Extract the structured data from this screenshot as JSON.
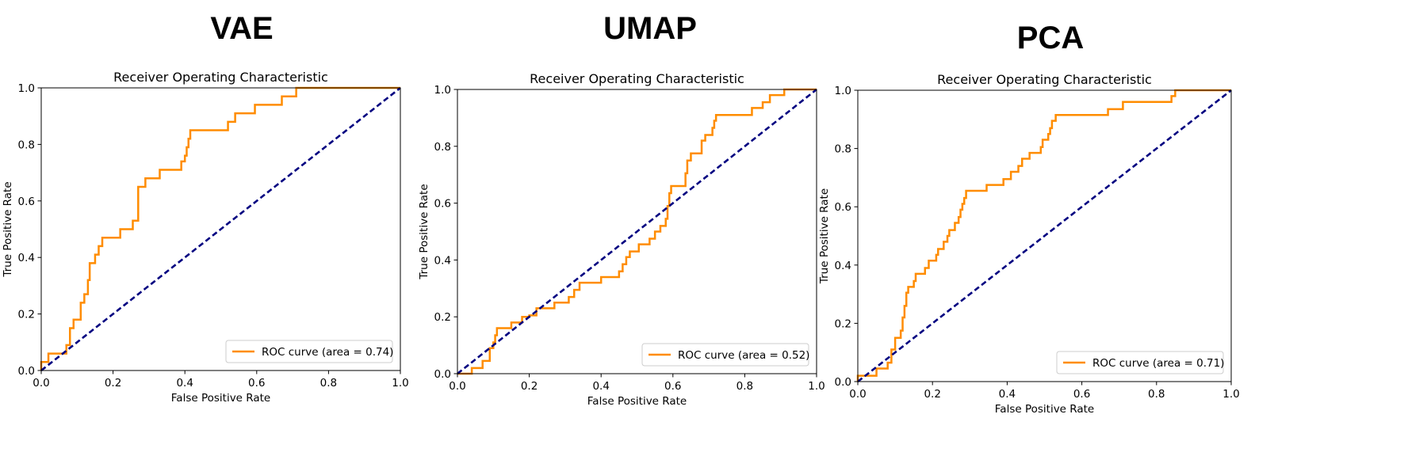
{
  "panels": [
    {
      "label": "VAE"
    },
    {
      "label": "UMAP"
    },
    {
      "label": "PCA"
    }
  ],
  "chart_data": [
    {
      "type": "line",
      "title": "Receiver Operating Characteristic",
      "xlabel": "False Positive Rate",
      "ylabel": "True Positive Rate",
      "xlim": [
        0.0,
        1.0
      ],
      "ylim": [
        0.0,
        1.0
      ],
      "x_ticks": [
        "0.0",
        "0.2",
        "0.4",
        "0.6",
        "0.8",
        "1.0"
      ],
      "y_ticks": [
        "0.0",
        "0.2",
        "0.4",
        "0.6",
        "0.8",
        "1.0"
      ],
      "legend_position": "lower right",
      "series": [
        {
          "name": "ROC curve (area = 0.74)",
          "color": "#ff8c00",
          "points": [
            [
              0,
              0
            ],
            [
              0,
              0.03
            ],
            [
              0.02,
              0.03
            ],
            [
              0.02,
              0.06
            ],
            [
              0.07,
              0.06
            ],
            [
              0.07,
              0.09
            ],
            [
              0.08,
              0.09
            ],
            [
              0.08,
              0.15
            ],
            [
              0.09,
              0.15
            ],
            [
              0.09,
              0.18
            ],
            [
              0.11,
              0.18
            ],
            [
              0.11,
              0.24
            ],
            [
              0.12,
              0.24
            ],
            [
              0.12,
              0.27
            ],
            [
              0.13,
              0.27
            ],
            [
              0.13,
              0.32
            ],
            [
              0.135,
              0.32
            ],
            [
              0.135,
              0.38
            ],
            [
              0.15,
              0.38
            ],
            [
              0.15,
              0.41
            ],
            [
              0.16,
              0.41
            ],
            [
              0.16,
              0.44
            ],
            [
              0.17,
              0.44
            ],
            [
              0.17,
              0.47
            ],
            [
              0.22,
              0.47
            ],
            [
              0.22,
              0.5
            ],
            [
              0.255,
              0.5
            ],
            [
              0.255,
              0.53
            ],
            [
              0.27,
              0.53
            ],
            [
              0.27,
              0.65
            ],
            [
              0.29,
              0.65
            ],
            [
              0.29,
              0.68
            ],
            [
              0.33,
              0.68
            ],
            [
              0.33,
              0.71
            ],
            [
              0.39,
              0.71
            ],
            [
              0.39,
              0.74
            ],
            [
              0.4,
              0.74
            ],
            [
              0.4,
              0.76
            ],
            [
              0.405,
              0.76
            ],
            [
              0.405,
              0.79
            ],
            [
              0.41,
              0.79
            ],
            [
              0.41,
              0.82
            ],
            [
              0.415,
              0.82
            ],
            [
              0.415,
              0.85
            ],
            [
              0.52,
              0.85
            ],
            [
              0.52,
              0.88
            ],
            [
              0.54,
              0.88
            ],
            [
              0.54,
              0.91
            ],
            [
              0.595,
              0.91
            ],
            [
              0.595,
              0.94
            ],
            [
              0.67,
              0.94
            ],
            [
              0.67,
              0.97
            ],
            [
              0.71,
              0.97
            ],
            [
              0.71,
              1.0
            ],
            [
              1.0,
              1.0
            ]
          ]
        },
        {
          "name": "",
          "color": "#000080",
          "dashed": true,
          "points": [
            [
              0,
              0
            ],
            [
              1,
              1
            ]
          ]
        }
      ]
    },
    {
      "type": "line",
      "title": "Receiver Operating Characteristic",
      "xlabel": "False Positive Rate",
      "ylabel": "True Positive Rate",
      "xlim": [
        0.0,
        1.0
      ],
      "ylim": [
        0.0,
        1.0
      ],
      "x_ticks": [
        "0.0",
        "0.2",
        "0.4",
        "0.6",
        "0.8",
        "1.0"
      ],
      "y_ticks": [
        "0.0",
        "0.2",
        "0.4",
        "0.6",
        "0.8",
        "1.0"
      ],
      "legend_position": "lower right",
      "series": [
        {
          "name": "ROC curve (area = 0.52)",
          "color": "#ff8c00",
          "points": [
            [
              0,
              0
            ],
            [
              0.04,
              0
            ],
            [
              0.04,
              0.02
            ],
            [
              0.07,
              0.02
            ],
            [
              0.07,
              0.045
            ],
            [
              0.09,
              0.045
            ],
            [
              0.09,
              0.09
            ],
            [
              0.1,
              0.09
            ],
            [
              0.1,
              0.11
            ],
            [
              0.105,
              0.11
            ],
            [
              0.105,
              0.135
            ],
            [
              0.11,
              0.135
            ],
            [
              0.11,
              0.16
            ],
            [
              0.15,
              0.16
            ],
            [
              0.15,
              0.18
            ],
            [
              0.18,
              0.18
            ],
            [
              0.18,
              0.2
            ],
            [
              0.2,
              0.2
            ],
            [
              0.2,
              0.205
            ],
            [
              0.22,
              0.205
            ],
            [
              0.22,
              0.23
            ],
            [
              0.27,
              0.23
            ],
            [
              0.27,
              0.25
            ],
            [
              0.31,
              0.25
            ],
            [
              0.31,
              0.27
            ],
            [
              0.325,
              0.27
            ],
            [
              0.325,
              0.295
            ],
            [
              0.34,
              0.295
            ],
            [
              0.34,
              0.32
            ],
            [
              0.4,
              0.32
            ],
            [
              0.4,
              0.34
            ],
            [
              0.45,
              0.34
            ],
            [
              0.45,
              0.36
            ],
            [
              0.46,
              0.36
            ],
            [
              0.46,
              0.385
            ],
            [
              0.47,
              0.385
            ],
            [
              0.47,
              0.41
            ],
            [
              0.48,
              0.41
            ],
            [
              0.48,
              0.43
            ],
            [
              0.505,
              0.43
            ],
            [
              0.505,
              0.455
            ],
            [
              0.535,
              0.455
            ],
            [
              0.535,
              0.475
            ],
            [
              0.55,
              0.475
            ],
            [
              0.55,
              0.5
            ],
            [
              0.565,
              0.5
            ],
            [
              0.565,
              0.52
            ],
            [
              0.58,
              0.52
            ],
            [
              0.58,
              0.545
            ],
            [
              0.585,
              0.545
            ],
            [
              0.585,
              0.59
            ],
            [
              0.59,
              0.59
            ],
            [
              0.59,
              0.635
            ],
            [
              0.595,
              0.635
            ],
            [
              0.595,
              0.66
            ],
            [
              0.635,
              0.66
            ],
            [
              0.635,
              0.705
            ],
            [
              0.64,
              0.705
            ],
            [
              0.64,
              0.75
            ],
            [
              0.65,
              0.75
            ],
            [
              0.65,
              0.775
            ],
            [
              0.68,
              0.775
            ],
            [
              0.68,
              0.82
            ],
            [
              0.69,
              0.82
            ],
            [
              0.69,
              0.84
            ],
            [
              0.71,
              0.84
            ],
            [
              0.71,
              0.865
            ],
            [
              0.715,
              0.865
            ],
            [
              0.715,
              0.89
            ],
            [
              0.72,
              0.89
            ],
            [
              0.72,
              0.91
            ],
            [
              0.82,
              0.91
            ],
            [
              0.82,
              0.935
            ],
            [
              0.85,
              0.935
            ],
            [
              0.85,
              0.955
            ],
            [
              0.87,
              0.955
            ],
            [
              0.87,
              0.98
            ],
            [
              0.91,
              0.98
            ],
            [
              0.91,
              1.0
            ],
            [
              1.0,
              1.0
            ]
          ]
        },
        {
          "name": "",
          "color": "#000080",
          "dashed": true,
          "points": [
            [
              0,
              0
            ],
            [
              1,
              1
            ]
          ]
        }
      ]
    },
    {
      "type": "line",
      "title": "Receiver Operating Characteristic",
      "xlabel": "False Positive Rate",
      "ylabel": "True Positive Rate",
      "xlim": [
        0.0,
        1.0
      ],
      "ylim": [
        0.0,
        1.0
      ],
      "x_ticks": [
        "0.0",
        "0.2",
        "0.4",
        "0.6",
        "0.8",
        "1.0"
      ],
      "y_ticks": [
        "0.0",
        "0.2",
        "0.4",
        "0.6",
        "0.8",
        "1.0"
      ],
      "legend_position": "lower right",
      "series": [
        {
          "name": "ROC curve (area = 0.71)",
          "color": "#ff8c00",
          "points": [
            [
              0,
              0
            ],
            [
              0,
              0.02
            ],
            [
              0.05,
              0.02
            ],
            [
              0.05,
              0.045
            ],
            [
              0.08,
              0.045
            ],
            [
              0.08,
              0.065
            ],
            [
              0.09,
              0.065
            ],
            [
              0.09,
              0.11
            ],
            [
              0.1,
              0.11
            ],
            [
              0.1,
              0.15
            ],
            [
              0.115,
              0.15
            ],
            [
              0.115,
              0.175
            ],
            [
              0.12,
              0.175
            ],
            [
              0.12,
              0.22
            ],
            [
              0.125,
              0.22
            ],
            [
              0.125,
              0.26
            ],
            [
              0.13,
              0.26
            ],
            [
              0.13,
              0.305
            ],
            [
              0.135,
              0.305
            ],
            [
              0.135,
              0.325
            ],
            [
              0.15,
              0.325
            ],
            [
              0.15,
              0.345
            ],
            [
              0.155,
              0.345
            ],
            [
              0.155,
              0.37
            ],
            [
              0.18,
              0.37
            ],
            [
              0.18,
              0.39
            ],
            [
              0.19,
              0.39
            ],
            [
              0.19,
              0.415
            ],
            [
              0.21,
              0.415
            ],
            [
              0.21,
              0.435
            ],
            [
              0.215,
              0.435
            ],
            [
              0.215,
              0.455
            ],
            [
              0.23,
              0.455
            ],
            [
              0.23,
              0.48
            ],
            [
              0.24,
              0.48
            ],
            [
              0.24,
              0.5
            ],
            [
              0.245,
              0.5
            ],
            [
              0.245,
              0.52
            ],
            [
              0.26,
              0.52
            ],
            [
              0.26,
              0.545
            ],
            [
              0.27,
              0.545
            ],
            [
              0.27,
              0.565
            ],
            [
              0.275,
              0.565
            ],
            [
              0.275,
              0.59
            ],
            [
              0.28,
              0.59
            ],
            [
              0.28,
              0.61
            ],
            [
              0.285,
              0.61
            ],
            [
              0.285,
              0.63
            ],
            [
              0.29,
              0.63
            ],
            [
              0.29,
              0.655
            ],
            [
              0.345,
              0.655
            ],
            [
              0.345,
              0.675
            ],
            [
              0.39,
              0.675
            ],
            [
              0.39,
              0.695
            ],
            [
              0.41,
              0.695
            ],
            [
              0.41,
              0.72
            ],
            [
              0.43,
              0.72
            ],
            [
              0.43,
              0.74
            ],
            [
              0.44,
              0.74
            ],
            [
              0.44,
              0.765
            ],
            [
              0.46,
              0.765
            ],
            [
              0.46,
              0.785
            ],
            [
              0.49,
              0.785
            ],
            [
              0.49,
              0.805
            ],
            [
              0.495,
              0.805
            ],
            [
              0.495,
              0.83
            ],
            [
              0.51,
              0.83
            ],
            [
              0.51,
              0.85
            ],
            [
              0.515,
              0.85
            ],
            [
              0.515,
              0.87
            ],
            [
              0.52,
              0.87
            ],
            [
              0.52,
              0.895
            ],
            [
              0.53,
              0.895
            ],
            [
              0.53,
              0.915
            ],
            [
              0.67,
              0.915
            ],
            [
              0.67,
              0.935
            ],
            [
              0.71,
              0.935
            ],
            [
              0.71,
              0.96
            ],
            [
              0.84,
              0.96
            ],
            [
              0.84,
              0.98
            ],
            [
              0.85,
              0.98
            ],
            [
              0.85,
              1.0
            ],
            [
              1.0,
              1.0
            ]
          ]
        },
        {
          "name": "",
          "color": "#000080",
          "dashed": true,
          "points": [
            [
              0,
              0
            ],
            [
              1,
              1
            ]
          ]
        }
      ]
    }
  ]
}
